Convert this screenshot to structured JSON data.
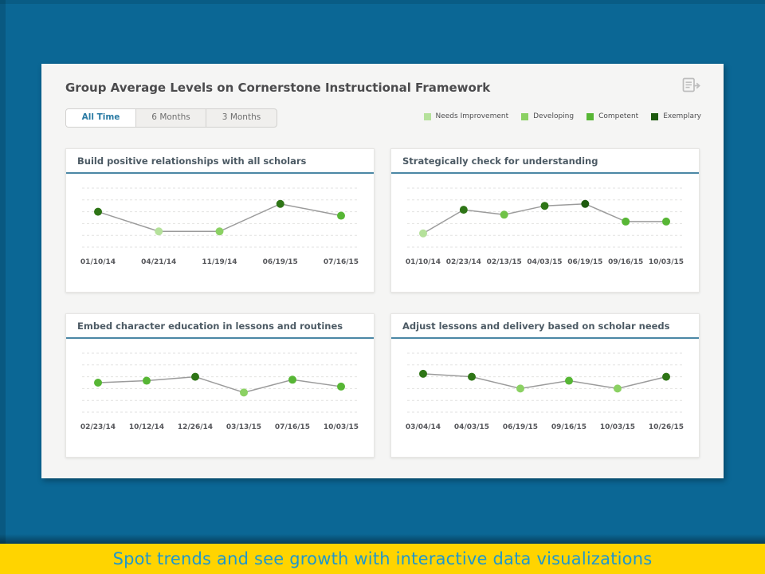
{
  "page": {
    "banner": {
      "text": "Spot trends and see growth with interactive data visualizations"
    },
    "colors": {
      "page_background": "#0b6795",
      "banner_background": "#ffd400",
      "banner_text": "#1f97cc",
      "accent_teal": "#4b87a5",
      "line_gray": "#9b9b9b"
    }
  },
  "card": {
    "title": "Group Average Levels on Cornerstone Instructional Framework",
    "tabs": [
      {
        "label": "All Time",
        "active": true
      },
      {
        "label": "6 Months",
        "active": false
      },
      {
        "label": "3 Months",
        "active": false
      }
    ],
    "legend": [
      {
        "label": "Needs Improvement",
        "color": "#b5e19b"
      },
      {
        "label": "Developing",
        "color": "#8bd163"
      },
      {
        "label": "Competent",
        "color": "#57b635"
      },
      {
        "label": "Exemplary",
        "color": "#1d5a0e"
      }
    ]
  },
  "chart_data": [
    {
      "type": "line",
      "title": "Build positive relationships with all scholars",
      "categories": [
        "01/10/14",
        "04/21/14",
        "11/19/14",
        "06/19/15",
        "07/16/15"
      ],
      "values": [
        2.8,
        1.8,
        1.8,
        3.2,
        2.6
      ],
      "point_colors": [
        "#2e7516",
        "#b5e19b",
        "#8bd163",
        "#2e7516",
        "#57b635"
      ],
      "xlabel": "",
      "ylabel": "",
      "ylim": [
        1,
        4
      ],
      "grid": "horizontal-dashed",
      "legend_position": "none"
    },
    {
      "type": "line",
      "title": "Strategically check for understanding",
      "categories": [
        "01/10/14",
        "02/23/14",
        "02/13/15",
        "04/03/15",
        "06/19/15",
        "09/16/15",
        "10/03/15"
      ],
      "values": [
        1.7,
        2.9,
        2.65,
        3.1,
        3.2,
        2.3,
        2.3
      ],
      "point_colors": [
        "#b5e19b",
        "#2e7516",
        "#6fc247",
        "#2e7516",
        "#1d5a0e",
        "#57b635",
        "#57b635"
      ],
      "xlabel": "",
      "ylabel": "",
      "ylim": [
        1,
        4
      ],
      "grid": "horizontal-dashed",
      "legend_position": "none"
    },
    {
      "type": "line",
      "title": "Embed character education in lessons and routines",
      "categories": [
        "02/23/14",
        "10/12/14",
        "12/26/14",
        "03/13/15",
        "07/16/15",
        "10/03/15"
      ],
      "values": [
        2.5,
        2.6,
        2.8,
        2.0,
        2.65,
        2.3
      ],
      "point_colors": [
        "#57b635",
        "#57b635",
        "#2e7516",
        "#8bd163",
        "#57b635",
        "#57b635"
      ],
      "xlabel": "",
      "ylabel": "",
      "ylim": [
        1,
        4
      ],
      "grid": "horizontal-dashed",
      "legend_position": "none"
    },
    {
      "type": "line",
      "title": "Adjust lessons and delivery based on scholar needs",
      "categories": [
        "03/04/14",
        "04/03/15",
        "06/19/15",
        "09/16/15",
        "10/03/15",
        "10/26/15"
      ],
      "values": [
        2.95,
        2.8,
        2.2,
        2.6,
        2.2,
        2.8
      ],
      "point_colors": [
        "#2e7516",
        "#2e7516",
        "#8bd163",
        "#57b635",
        "#8bd163",
        "#2e7516"
      ],
      "xlabel": "",
      "ylabel": "",
      "ylim": [
        1,
        4
      ],
      "grid": "horizontal-dashed",
      "legend_position": "none"
    }
  ]
}
